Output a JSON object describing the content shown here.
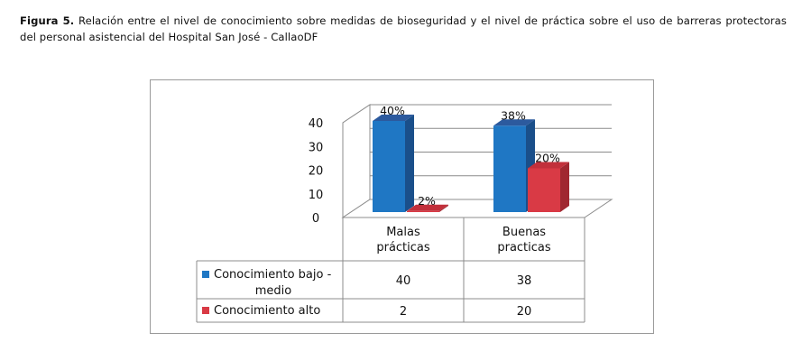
{
  "caption": {
    "label": "Figura 5.",
    "text": "Relación entre el nivel de conocimiento sobre medidas de bioseguridad y el nivel de práctica sobre el uso de barreras protectoras del personal asistencial del Hospital San José - CallaoDF"
  },
  "colors": {
    "series1": "#1f77c4",
    "series1_side": "#1a4f8a",
    "series1_top": "#2c5a9e",
    "series2": "#d93a45",
    "series2_side": "#a02730",
    "series2_top": "#c2303b"
  },
  "chart_data": {
    "type": "bar",
    "title": "",
    "xlabel": "",
    "ylabel": "",
    "ylim": [
      0,
      40
    ],
    "yticks": [
      0,
      10,
      20,
      30,
      40
    ],
    "grid": true,
    "categories": [
      {
        "line1": "Malas",
        "line2": "prácticas"
      },
      {
        "line1": "Buenas",
        "line2": "practicas"
      }
    ],
    "series": [
      {
        "name_line1": "Conocimiento bajo -",
        "name_line2": "medio",
        "values": [
          40,
          38
        ],
        "labels": [
          "40%",
          "38%"
        ]
      },
      {
        "name_line1": "Conocimiento alto",
        "name_line2": "",
        "values": [
          2,
          20
        ],
        "labels": [
          "2%",
          "20%"
        ]
      }
    ],
    "table": [
      [
        "40",
        "38"
      ],
      [
        "2",
        "20"
      ]
    ]
  }
}
